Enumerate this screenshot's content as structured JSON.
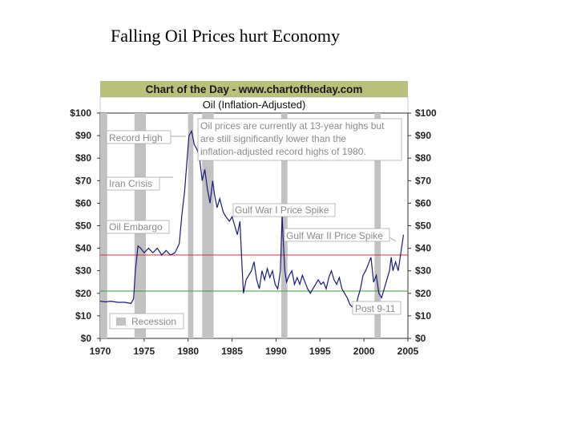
{
  "slide": {
    "title": "Falling Oil Prices hurt Economy"
  },
  "chart_data": {
    "type": "line",
    "header": "Chart of the Day - www.chartoftheday.com",
    "title": "Oil (Inflation-Adjusted)",
    "xlim": [
      1970,
      2005
    ],
    "ylim": [
      0,
      100
    ],
    "x_ticks": [
      "1970",
      "1975",
      "1980",
      "1985",
      "1990",
      "1995",
      "2000",
      "2005"
    ],
    "y_ticks": [
      "$0",
      "$10",
      "$20",
      "$30",
      "$40",
      "$50",
      "$60",
      "$70",
      "$80",
      "$90",
      "$100"
    ],
    "grid": false,
    "series": [
      {
        "color": "#1a1a7a",
        "x": [
          1970.0,
          1970.6,
          1971.2,
          1972.0,
          1972.8,
          1973.5,
          1973.8,
          1974.0,
          1974.3,
          1974.6,
          1975.0,
          1975.5,
          1976.0,
          1976.5,
          1977.0,
          1977.5,
          1978.0,
          1978.5,
          1979.0,
          1979.3,
          1979.6,
          1979.9,
          1980.1,
          1980.4,
          1980.7,
          1981.0,
          1981.3,
          1981.6,
          1981.9,
          1982.2,
          1982.5,
          1982.8,
          1983.0,
          1983.3,
          1983.6,
          1984.0,
          1984.3,
          1984.7,
          1985.0,
          1985.3,
          1985.6,
          1985.9,
          1986.1,
          1986.3,
          1986.6,
          1986.9,
          1987.2,
          1987.5,
          1987.8,
          1988.1,
          1988.4,
          1988.7,
          1989.0,
          1989.3,
          1989.6,
          1989.9,
          1990.2,
          1990.5,
          1990.7,
          1990.8,
          1991.0,
          1991.2,
          1991.5,
          1991.8,
          1992.1,
          1992.4,
          1992.7,
          1993.0,
          1993.3,
          1993.6,
          1993.9,
          1994.2,
          1994.5,
          1994.8,
          1995.1,
          1995.4,
          1995.7,
          1996.0,
          1996.3,
          1996.6,
          1996.9,
          1997.2,
          1997.5,
          1997.8,
          1998.1,
          1998.4,
          1998.7,
          1999.0,
          1999.3,
          1999.6,
          1999.9,
          2000.2,
          2000.5,
          2000.8,
          2001.1,
          2001.4,
          2001.7,
          2002.0,
          2002.3,
          2002.6,
          2002.9,
          2003.1,
          2003.3,
          2003.6,
          2003.9,
          2004.2,
          2004.5
        ],
        "y": [
          16.5,
          16.2,
          16.5,
          16.0,
          16.0,
          15.5,
          17.5,
          30,
          41,
          40,
          38,
          40,
          38,
          40,
          37,
          39,
          37,
          38,
          42,
          55,
          65,
          80,
          90,
          92,
          86,
          84,
          80,
          70,
          75,
          66,
          60,
          70,
          64,
          58,
          62,
          56,
          54,
          52,
          54,
          50,
          46,
          52,
          35,
          20,
          26,
          28,
          30,
          34,
          26,
          22,
          30,
          26,
          31,
          27,
          30,
          24,
          22,
          30,
          55,
          45,
          30,
          25,
          28,
          30,
          24,
          27,
          24,
          28,
          25,
          22,
          20,
          22,
          24,
          26,
          24,
          25,
          22,
          27,
          30,
          26,
          24,
          27,
          22,
          20,
          18,
          15,
          14,
          12,
          18,
          22,
          28,
          30,
          33,
          36,
          25,
          28,
          20,
          18,
          22,
          26,
          30,
          36,
          30,
          34,
          30,
          38,
          46
        ]
      }
    ],
    "reference_lines": [
      {
        "y": 37,
        "color": "#c03a3a"
      },
      {
        "y": 21,
        "color": "#3a9a3a"
      }
    ],
    "recession_bands": [
      [
        1970.0,
        1970.8
      ],
      [
        1973.9,
        1975.2
      ],
      [
        1980.0,
        1980.6
      ],
      [
        1981.6,
        1982.9
      ],
      [
        1990.6,
        1991.3
      ],
      [
        2001.2,
        2001.9
      ]
    ],
    "annotations": {
      "note": "Oil prices are currently at 13-year highs but are still significantly lower than the inflation-adjusted record highs of 1980.",
      "record_high": "Record High",
      "iran_crisis": "Iran Crisis",
      "oil_embargo": "Oil Embargo",
      "gulf_war_1": "Gulf War I Price Spike",
      "gulf_war_2": "Gulf War II Price Spike",
      "post_911": "Post 9-11",
      "legend_recession": "Recession"
    }
  }
}
